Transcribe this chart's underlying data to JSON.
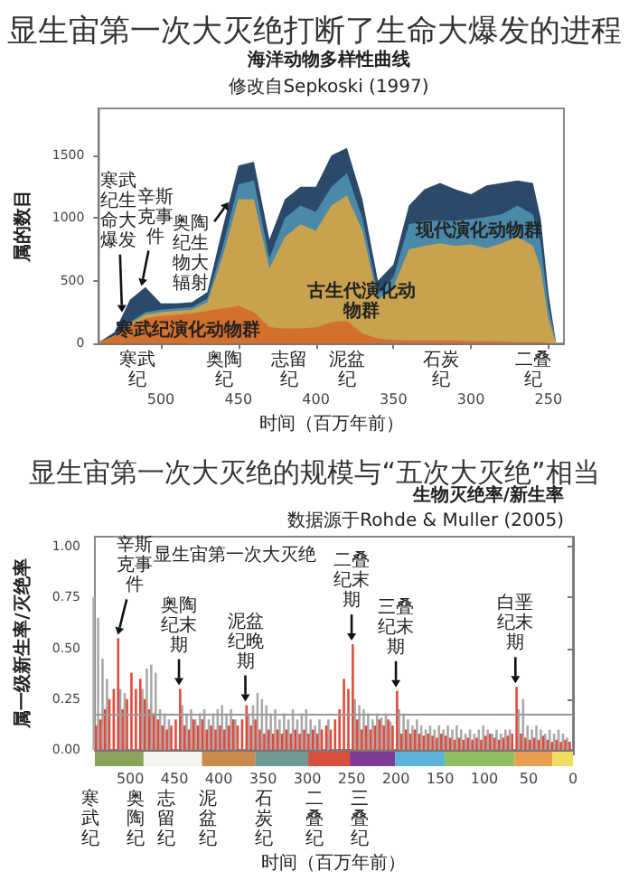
{
  "chart_data": [
    {
      "type": "area",
      "stacked": true,
      "title": "显生宙第一次大灭绝打断了生命大爆发的进程",
      "subtitle": "海洋动物多样性曲线",
      "xlabel": "时间（百万年前）",
      "ylabel": "属的数目",
      "x": [
        540,
        530,
        520,
        510,
        500,
        490,
        480,
        470,
        460,
        450,
        440,
        430,
        420,
        410,
        400,
        390,
        380,
        370,
        360,
        350,
        340,
        330,
        320,
        310,
        300,
        290,
        280,
        270,
        260,
        255,
        250,
        245
      ],
      "xlim": [
        540,
        240
      ],
      "xticks": [
        500,
        450,
        400,
        350,
        300,
        250
      ],
      "ylim": [
        0,
        1875
      ],
      "yticks": [
        0,
        500,
        1000,
        1500
      ],
      "series": [
        {
          "name": "寒武纪演化动物群",
          "color": "#d4702e",
          "values": [
            10,
            60,
            150,
            200,
            220,
            230,
            240,
            260,
            280,
            300,
            250,
            130,
            120,
            120,
            130,
            170,
            180,
            80,
            40,
            30,
            25,
            25,
            25,
            25,
            20,
            20,
            15,
            10,
            10,
            10,
            5,
            0
          ]
        },
        {
          "name": "古生代演化动物群",
          "color": "#c9a24f",
          "values": [
            0,
            0,
            10,
            30,
            30,
            30,
            30,
            70,
            420,
            850,
            900,
            470,
            730,
            830,
            770,
            930,
            1000,
            820,
            310,
            420,
            725,
            755,
            775,
            755,
            770,
            740,
            785,
            840,
            770,
            590,
            195,
            0
          ]
        },
        {
          "name": "现代演化动物群",
          "color": "#4a89a8",
          "values": [
            0,
            0,
            10,
            20,
            20,
            20,
            20,
            30,
            80,
            120,
            150,
            80,
            150,
            150,
            150,
            150,
            180,
            100,
            50,
            80,
            200,
            200,
            180,
            200,
            200,
            250,
            230,
            250,
            250,
            200,
            100,
            0
          ]
        },
        {
          "color": "#2b4a6b",
          "values": [
            0,
            30,
            180,
            200,
            50,
            40,
            40,
            50,
            150,
            150,
            150,
            150,
            150,
            150,
            200,
            250,
            200,
            150,
            100,
            100,
            150,
            250,
            300,
            250,
            200,
            250,
            250,
            200,
            250,
            200,
            100,
            0
          ]
        }
      ],
      "annotations": [
        "修改自Sepkoski (1997)",
        {
          "text": "辛斯克事件",
          "x": 513,
          "y": 430
        },
        {
          "text": "寒武纪生命大爆发",
          "x": 525,
          "y": 220
        },
        {
          "text": "奥陶纪生物大辐射",
          "x": 455,
          "y": 1150
        },
        "寒武纪",
        "奥陶纪",
        "志留纪",
        "泥盆纪",
        "石炭纪",
        "二叠纪"
      ]
    },
    {
      "type": "bar",
      "title": "显生宙第一次大灭绝的规模与“五次大灭绝”相当",
      "subtitle": "生物灭绝率/新生率",
      "xlabel": "时间（百万年前）",
      "ylabel": "属一级新生率/灭绝率",
      "x": [
        540,
        535,
        530,
        525,
        520,
        515,
        510,
        505,
        500,
        495,
        490,
        485,
        480,
        475,
        470,
        465,
        460,
        455,
        450,
        445,
        440,
        435,
        430,
        425,
        420,
        415,
        410,
        405,
        400,
        395,
        390,
        385,
        380,
        375,
        370,
        365,
        360,
        355,
        350,
        345,
        340,
        335,
        330,
        325,
        320,
        315,
        310,
        305,
        300,
        295,
        290,
        285,
        280,
        275,
        270,
        265,
        260,
        255,
        250,
        245,
        240,
        235,
        230,
        225,
        220,
        215,
        210,
        205,
        200,
        195,
        190,
        185,
        180,
        175,
        170,
        165,
        160,
        155,
        150,
        145,
        140,
        135,
        130,
        125,
        120,
        115,
        110,
        105,
        100,
        95,
        90,
        85,
        80,
        75,
        70,
        65,
        60,
        55,
        50,
        45,
        40,
        35,
        30,
        25,
        20,
        15,
        10,
        5
      ],
      "xlim": [
        540,
        0
      ],
      "xticks": [
        500,
        450,
        400,
        350,
        300,
        250,
        200,
        150,
        100,
        50,
        0
      ],
      "ylim": [
        0,
        1.05
      ],
      "yticks": [
        {
          "value": 0,
          "label": "0.00"
        },
        {
          "value": 0.25,
          "label": "0.25"
        },
        {
          "value": 0.5,
          "label": "0.50"
        },
        {
          "value": 0.75,
          "label": "0.75"
        },
        {
          "value": 1,
          "label": "1.00"
        }
      ],
      "series": [
        {
          "color": "#a9a9a9",
          "values": [
            0.75,
            0.65,
            0.45,
            0.35,
            null,
            null,
            0.3,
            0.28,
            null,
            null,
            null,
            0.3,
            0.4,
            0.42,
            0.38,
            0.2,
            0.18,
            0.15,
            null,
            null,
            0.22,
            0.18,
            0.2,
            0.15,
            0.18,
            0.2,
            0.15,
            0.18,
            0.2,
            0.22,
            0.18,
            0.2,
            0.15,
            null,
            null,
            0.18,
            0.22,
            0.28,
            0.25,
            0.22,
            0.18,
            0.2,
            0.15,
            0.18,
            0.15,
            0.2,
            0.15,
            0.18,
            0.2,
            0.15,
            0.12,
            0.15,
            null,
            0.15,
            null,
            null,
            null,
            null,
            null,
            0.25,
            0.22,
            0.2,
            0.18,
            0.15,
            0.18,
            0.16,
            0.18,
            0.14,
            null,
            0.2,
            0.18,
            0.15,
            0.12,
            0.15,
            0.12,
            0.1,
            0.12,
            0.1,
            0.12,
            0.1,
            0.12,
            0.1,
            0.12,
            0.1,
            0.08,
            0.1,
            0.08,
            0.1,
            0.12,
            0.1,
            0.08,
            0.1,
            0.08,
            0.1,
            0.1,
            null,
            0.2,
            0.25,
            0.12,
            0.1,
            0.12,
            0.1,
            0.08,
            0.1,
            0.08,
            0.1,
            0.08,
            0.06
          ]
        },
        {
          "color": "#e04a3c",
          "values": [
            0.12,
            0.15,
            0.2,
            0.25,
            0.3,
            0.55,
            0.2,
            0.25,
            0.38,
            0.3,
            0.35,
            0.25,
            0.2,
            0.18,
            0.15,
            0.12,
            0.1,
            0.12,
            0.15,
            0.3,
            0.12,
            0.1,
            0.15,
            0.12,
            0.15,
            0.1,
            0.12,
            0.1,
            0.12,
            0.1,
            0.12,
            0.15,
            0.12,
            0.15,
            0.22,
            0.12,
            0.15,
            0.1,
            0.08,
            0.1,
            0.08,
            0.1,
            0.08,
            0.1,
            0.08,
            0.1,
            0.08,
            0.1,
            0.08,
            0.1,
            0.08,
            0.1,
            0.12,
            0.1,
            0.15,
            0.2,
            0.35,
            0.3,
            0.52,
            0.15,
            0.1,
            0.12,
            0.1,
            0.12,
            0.15,
            0.12,
            0.15,
            0.12,
            0.29,
            0.08,
            0.1,
            0.08,
            0.1,
            0.08,
            0.07,
            0.08,
            0.07,
            0.06,
            0.08,
            0.07,
            0.06,
            0.05,
            0.06,
            0.05,
            0.06,
            0.05,
            0.06,
            0.05,
            0.07,
            0.08,
            0.06,
            0.05,
            0.06,
            0.07,
            0.08,
            0.31,
            0.08,
            0.06,
            0.05,
            0.06,
            0.05,
            0.07,
            0.05,
            0.04,
            0.05,
            0.04,
            0.05,
            0.04
          ]
        }
      ],
      "ref_lines": [
        {
          "axis": "y",
          "value": 0.18,
          "color": "#9a9a9a"
        }
      ],
      "annotations": [
        "数据源于Rohde & Muller (2005)",
        "显生宙第一次大灭绝",
        "寒武纪",
        "奥陶纪",
        "志留纪",
        "泥盆纪",
        "石炭纪",
        "二叠纪",
        "三叠纪",
        {
          "text": "辛斯克事件",
          "x": 515,
          "y": 0.55
        },
        {
          "text": "奥陶纪末期",
          "x": 445,
          "y": 0.3
        },
        {
          "text": "泥盆纪晚期",
          "x": 370,
          "y": 0.22
        },
        {
          "text": "二叠纪末期",
          "x": 250,
          "y": 0.52
        },
        {
          "text": "三叠纪末期",
          "x": 200,
          "y": 0.29
        },
        {
          "text": "白垩纪末期",
          "x": 65,
          "y": 0.31
        }
      ]
    }
  ]
}
